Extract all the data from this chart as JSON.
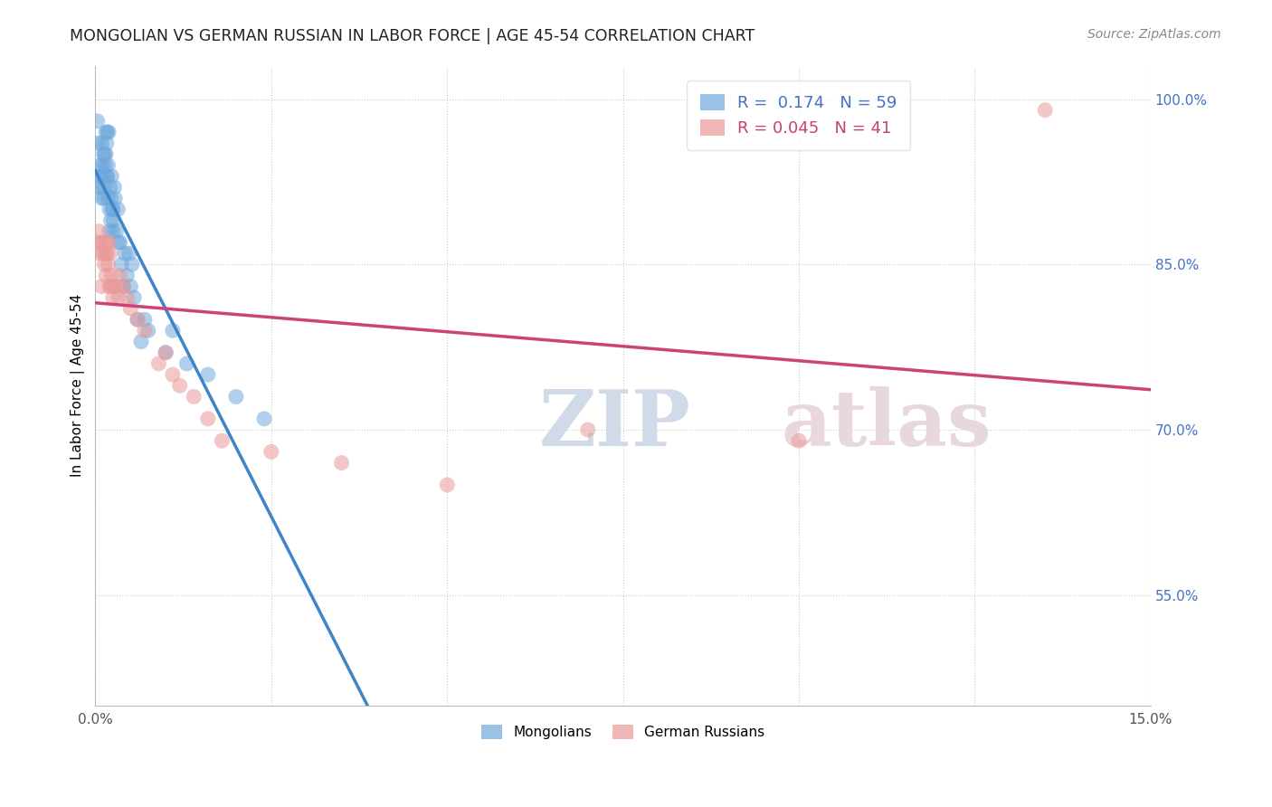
{
  "title": "MONGOLIAN VS GERMAN RUSSIAN IN LABOR FORCE | AGE 45-54 CORRELATION CHART",
  "source": "Source: ZipAtlas.com",
  "ylabel": "In Labor Force | Age 45-54",
  "xlim": [
    0.0,
    0.15
  ],
  "ylim": [
    0.45,
    1.03
  ],
  "xticks": [
    0.0,
    0.025,
    0.05,
    0.075,
    0.1,
    0.125,
    0.15
  ],
  "xticklabels": [
    "0.0%",
    "",
    "",
    "",
    "",
    "",
    "15.0%"
  ],
  "yticks_right": [
    0.55,
    0.7,
    0.85,
    1.0
  ],
  "ytick_labels_right": [
    "55.0%",
    "70.0%",
    "85.0%",
    "100.0%"
  ],
  "mongolian_R": 0.174,
  "mongolian_N": 59,
  "german_russian_R": 0.045,
  "german_russian_N": 41,
  "mongolian_color": "#6fa8dc",
  "german_russian_color": "#ea9999",
  "trend_mongolian_color": "#3d85c8",
  "trend_german_russian_color": "#cc4477",
  "trend_mongolian_dash_color": "#aabbd4",
  "watermark_zip": "ZIP",
  "watermark_atlas": "atlas",
  "mongolian_x": [
    0.0003,
    0.0003,
    0.0005,
    0.0006,
    0.0007,
    0.0008,
    0.0009,
    0.0009,
    0.001,
    0.001,
    0.0011,
    0.0012,
    0.0012,
    0.0013,
    0.0013,
    0.0014,
    0.0015,
    0.0015,
    0.0016,
    0.0016,
    0.0017,
    0.0017,
    0.0018,
    0.0018,
    0.0019,
    0.002,
    0.002,
    0.0021,
    0.0022,
    0.0022,
    0.0023,
    0.0024,
    0.0025,
    0.0025,
    0.0026,
    0.0027,
    0.0028,
    0.003,
    0.0032,
    0.0033,
    0.0035,
    0.0037,
    0.004,
    0.0042,
    0.0045,
    0.0048,
    0.005,
    0.0052,
    0.0055,
    0.006,
    0.0065,
    0.007,
    0.0075,
    0.01,
    0.011,
    0.013,
    0.016,
    0.02,
    0.024
  ],
  "mongolian_y": [
    0.96,
    0.98,
    0.92,
    0.94,
    0.92,
    0.93,
    0.93,
    0.96,
    0.91,
    0.94,
    0.93,
    0.91,
    0.95,
    0.92,
    0.95,
    0.94,
    0.95,
    0.97,
    0.93,
    0.96,
    0.93,
    0.97,
    0.91,
    0.94,
    0.97,
    0.88,
    0.9,
    0.92,
    0.89,
    0.91,
    0.93,
    0.9,
    0.88,
    0.9,
    0.89,
    0.92,
    0.91,
    0.88,
    0.9,
    0.87,
    0.87,
    0.85,
    0.83,
    0.86,
    0.84,
    0.86,
    0.83,
    0.85,
    0.82,
    0.8,
    0.78,
    0.8,
    0.79,
    0.77,
    0.79,
    0.76,
    0.75,
    0.73,
    0.71
  ],
  "german_russian_x": [
    0.0003,
    0.0005,
    0.0006,
    0.0008,
    0.0009,
    0.0011,
    0.0012,
    0.0013,
    0.0014,
    0.0015,
    0.0016,
    0.0017,
    0.0018,
    0.0019,
    0.002,
    0.0021,
    0.0022,
    0.0023,
    0.0025,
    0.0027,
    0.003,
    0.0033,
    0.0035,
    0.004,
    0.0045,
    0.005,
    0.006,
    0.007,
    0.009,
    0.01,
    0.011,
    0.012,
    0.014,
    0.016,
    0.018,
    0.025,
    0.035,
    0.05,
    0.07,
    0.1,
    0.135
  ],
  "german_russian_y": [
    0.87,
    0.88,
    0.86,
    0.87,
    0.83,
    0.86,
    0.87,
    0.85,
    0.86,
    0.84,
    0.87,
    0.86,
    0.85,
    0.87,
    0.83,
    0.86,
    0.83,
    0.84,
    0.82,
    0.83,
    0.83,
    0.82,
    0.84,
    0.83,
    0.82,
    0.81,
    0.8,
    0.79,
    0.76,
    0.77,
    0.75,
    0.74,
    0.73,
    0.71,
    0.69,
    0.68,
    0.67,
    0.65,
    0.7,
    0.69,
    0.99
  ]
}
